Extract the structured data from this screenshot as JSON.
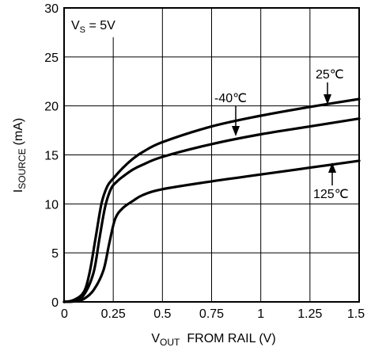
{
  "chart_data": {
    "type": "line",
    "xlabel": {
      "main": "V",
      "sub": "OUT",
      "rest": "FROM RAIL (V)"
    },
    "ylabel": {
      "main": "I",
      "sub": "SOURCE",
      "rest": "(mA)"
    },
    "xlim": [
      0,
      1.5
    ],
    "ylim": [
      0,
      30
    ],
    "x_ticks": [
      0,
      0.25,
      0.5,
      0.75,
      1,
      1.25,
      1.5
    ],
    "x_tick_labels": [
      "0",
      "0.25",
      "0.5",
      "0.75",
      "1",
      "1.25",
      "1.5"
    ],
    "y_ticks": [
      0,
      5,
      10,
      15,
      20,
      25,
      30
    ],
    "y_tick_labels": [
      "0",
      "5",
      "10",
      "15",
      "20",
      "25",
      "30"
    ],
    "grid": true,
    "series": [
      {
        "name": "25℃",
        "x": [
          0,
          0.05,
          0.1,
          0.13,
          0.16,
          0.19,
          0.22,
          0.25,
          0.3,
          0.35,
          0.4,
          0.5,
          0.75,
          1.0,
          1.25,
          1.5
        ],
        "y": [
          0,
          0.2,
          1.0,
          3.0,
          6.5,
          10.0,
          11.8,
          12.6,
          13.7,
          14.6,
          15.3,
          16.3,
          17.9,
          19.0,
          19.9,
          20.7
        ]
      },
      {
        "name": "-40℃",
        "x": [
          0,
          0.05,
          0.1,
          0.15,
          0.18,
          0.21,
          0.24,
          0.27,
          0.3,
          0.35,
          0.4,
          0.5,
          0.75,
          1.0,
          1.25,
          1.5
        ],
        "y": [
          0,
          0.1,
          0.7,
          3.0,
          6.5,
          9.8,
          11.6,
          12.3,
          12.8,
          13.5,
          14.0,
          14.8,
          16.1,
          17.1,
          17.9,
          18.7
        ]
      },
      {
        "name": "125℃",
        "x": [
          0,
          0.05,
          0.1,
          0.15,
          0.2,
          0.23,
          0.26,
          0.3,
          0.35,
          0.4,
          0.5,
          0.75,
          1.0,
          1.25,
          1.5
        ],
        "y": [
          0,
          0.05,
          0.3,
          1.2,
          3.2,
          6.0,
          8.5,
          9.6,
          10.3,
          10.9,
          11.5,
          12.3,
          13.0,
          13.7,
          14.4
        ]
      }
    ],
    "annotations": {
      "supply": {
        "main": "V",
        "sub": "S",
        "rest": " = 5V"
      },
      "label_25": "25℃",
      "label_m40": "-40℃",
      "label_125": "125℃"
    }
  }
}
